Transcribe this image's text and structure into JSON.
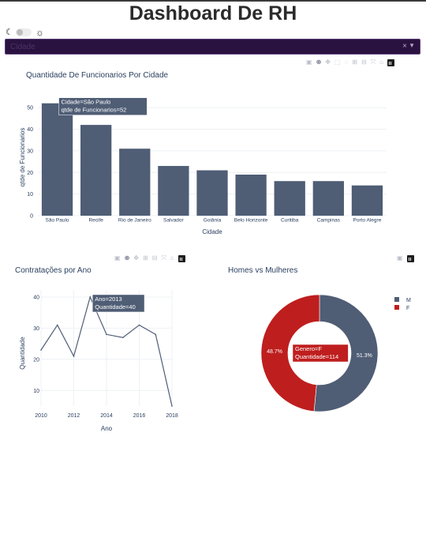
{
  "header": {
    "title": "Dashboard De RH"
  },
  "theme_toggle": {
    "moon_icon": "moon-icon",
    "sun_icon": "sun-icon"
  },
  "filter": {
    "placeholder": "Cidade",
    "clear_symbol": "×",
    "arrow_symbol": "▼"
  },
  "colors": {
    "primary": "#4f5d75",
    "accent": "#bf1e1e",
    "dropdown_bg": "#2a1240"
  },
  "chart_data": [
    {
      "id": "city",
      "type": "bar",
      "title": "Quantidade De Funcionarios Por Cidade",
      "xlabel": "Cidade",
      "ylabel": "qtde de Funcionarios",
      "categories": [
        "São Paulo",
        "Recife",
        "Rio de Janeiro",
        "Salvador",
        "Goiânia",
        "Belo Horizonte",
        "Curitiba",
        "Campinas",
        "Porto Alegre"
      ],
      "values": [
        52,
        42,
        31,
        23,
        21,
        19,
        16,
        16,
        14
      ],
      "ylim": [
        0,
        53
      ],
      "yticks": [
        0,
        10,
        20,
        30,
        40,
        50
      ],
      "grid": true,
      "hover": {
        "category_index": 0,
        "lines": [
          "Cidade=São Paulo",
          "qtde de Funcionarios=52"
        ]
      }
    },
    {
      "id": "hires",
      "type": "line",
      "title": "Contratações por Ano",
      "xlabel": "Ano",
      "ylabel": "Quantidade",
      "x": [
        2010,
        2011,
        2012,
        2013,
        2014,
        2015,
        2016,
        2017,
        2018
      ],
      "y": [
        23,
        31,
        21,
        40,
        28,
        27,
        31,
        28,
        5
      ],
      "xlim": [
        2010,
        2018
      ],
      "ylim": [
        5,
        41
      ],
      "xticks": [
        2010,
        2012,
        2014,
        2016,
        2018
      ],
      "yticks": [
        10,
        20,
        30,
        40
      ],
      "grid": true,
      "hover": {
        "point_index": 3,
        "lines": [
          "Ano=2013",
          "Quantidade=40"
        ]
      }
    },
    {
      "id": "gender",
      "type": "pie",
      "title": "Homes vs Mulheres",
      "hole": true,
      "labels": [
        "M",
        "F"
      ],
      "values": [
        121,
        114
      ],
      "percent_labels": [
        "51.3%",
        "48.7%"
      ],
      "legend_position": "top-right",
      "hover": {
        "slice_index": 1,
        "lines": [
          "Genero=F",
          "Quantidade=114"
        ]
      }
    }
  ]
}
